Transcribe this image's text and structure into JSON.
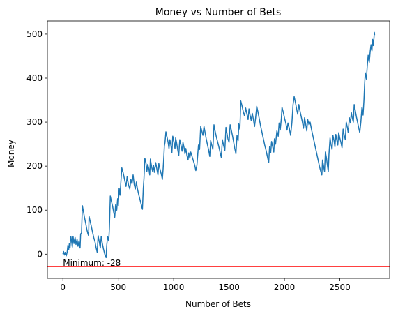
{
  "chart_data": {
    "type": "line",
    "title": "Money vs Number of Bets",
    "xlabel": "Number of Bets",
    "ylabel": "Money",
    "xlim": [
      -140,
      2950
    ],
    "ylim": [
      -55,
      530
    ],
    "xticks": [
      0,
      500,
      1000,
      1500,
      2000,
      2500
    ],
    "yticks": [
      0,
      100,
      200,
      300,
      400,
      500
    ],
    "grid": false,
    "legend": "none",
    "series": [
      {
        "name": "Money",
        "color": "#1f77b4",
        "points": [
          [
            0,
            0
          ],
          [
            6,
            6
          ],
          [
            14,
            -2
          ],
          [
            20,
            4
          ],
          [
            30,
            -4
          ],
          [
            38,
            4
          ],
          [
            45,
            20
          ],
          [
            52,
            10
          ],
          [
            58,
            24
          ],
          [
            64,
            14
          ],
          [
            72,
            40
          ],
          [
            78,
            30
          ],
          [
            85,
            16
          ],
          [
            92,
            40
          ],
          [
            100,
            24
          ],
          [
            110,
            38
          ],
          [
            118,
            22
          ],
          [
            128,
            34
          ],
          [
            136,
            18
          ],
          [
            145,
            30
          ],
          [
            155,
            14
          ],
          [
            160,
            46
          ],
          [
            168,
            48
          ],
          [
            176,
            110
          ],
          [
            186,
            96
          ],
          [
            196,
            82
          ],
          [
            206,
            70
          ],
          [
            216,
            56
          ],
          [
            226,
            46
          ],
          [
            232,
            42
          ],
          [
            236,
            86
          ],
          [
            245,
            76
          ],
          [
            256,
            64
          ],
          [
            266,
            52
          ],
          [
            278,
            38
          ],
          [
            290,
            28
          ],
          [
            300,
            14
          ],
          [
            310,
            4
          ],
          [
            318,
            42
          ],
          [
            328,
            28
          ],
          [
            338,
            14
          ],
          [
            346,
            40
          ],
          [
            355,
            26
          ],
          [
            366,
            12
          ],
          [
            378,
            0
          ],
          [
            390,
            -8
          ],
          [
            396,
            20
          ],
          [
            404,
            40
          ],
          [
            414,
            30
          ],
          [
            420,
            60
          ],
          [
            428,
            132
          ],
          [
            438,
            120
          ],
          [
            448,
            110
          ],
          [
            458,
            96
          ],
          [
            468,
            84
          ],
          [
            476,
            112
          ],
          [
            486,
            100
          ],
          [
            494,
            126
          ],
          [
            500,
            110
          ],
          [
            508,
            150
          ],
          [
            516,
            134
          ],
          [
            524,
            166
          ],
          [
            532,
            196
          ],
          [
            545,
            184
          ],
          [
            558,
            168
          ],
          [
            570,
            154
          ],
          [
            580,
            176
          ],
          [
            592,
            158
          ],
          [
            604,
            148
          ],
          [
            614,
            170
          ],
          [
            624,
            160
          ],
          [
            634,
            180
          ],
          [
            644,
            158
          ],
          [
            654,
            148
          ],
          [
            664,
            164
          ],
          [
            672,
            150
          ],
          [
            684,
            136
          ],
          [
            696,
            124
          ],
          [
            708,
            112
          ],
          [
            718,
            102
          ],
          [
            726,
            150
          ],
          [
            732,
            172
          ],
          [
            740,
            218
          ],
          [
            750,
            208
          ],
          [
            758,
            188
          ],
          [
            766,
            204
          ],
          [
            776,
            194
          ],
          [
            784,
            180
          ],
          [
            790,
            216
          ],
          [
            800,
            200
          ],
          [
            810,
            188
          ],
          [
            818,
            202
          ],
          [
            826,
            186
          ],
          [
            838,
            208
          ],
          [
            848,
            194
          ],
          [
            858,
            180
          ],
          [
            866,
            206
          ],
          [
            876,
            194
          ],
          [
            888,
            182
          ],
          [
            898,
            170
          ],
          [
            905,
            194
          ],
          [
            912,
            224
          ],
          [
            916,
            246
          ],
          [
            922,
            254
          ],
          [
            930,
            278
          ],
          [
            942,
            264
          ],
          [
            950,
            254
          ],
          [
            958,
            240
          ],
          [
            966,
            260
          ],
          [
            976,
            246
          ],
          [
            984,
            230
          ],
          [
            992,
            268
          ],
          [
            1002,
            256
          ],
          [
            1012,
            240
          ],
          [
            1018,
            264
          ],
          [
            1026,
            254
          ],
          [
            1036,
            238
          ],
          [
            1046,
            224
          ],
          [
            1055,
            260
          ],
          [
            1066,
            248
          ],
          [
            1076,
            234
          ],
          [
            1084,
            254
          ],
          [
            1094,
            242
          ],
          [
            1102,
            228
          ],
          [
            1110,
            240
          ],
          [
            1120,
            224
          ],
          [
            1130,
            214
          ],
          [
            1136,
            230
          ],
          [
            1146,
            218
          ],
          [
            1154,
            232
          ],
          [
            1166,
            222
          ],
          [
            1178,
            212
          ],
          [
            1190,
            202
          ],
          [
            1200,
            190
          ],
          [
            1210,
            202
          ],
          [
            1216,
            222
          ],
          [
            1224,
            248
          ],
          [
            1234,
            238
          ],
          [
            1244,
            290
          ],
          [
            1254,
            280
          ],
          [
            1264,
            270
          ],
          [
            1274,
            290
          ],
          [
            1284,
            276
          ],
          [
            1294,
            262
          ],
          [
            1304,
            250
          ],
          [
            1316,
            236
          ],
          [
            1326,
            222
          ],
          [
            1334,
            258
          ],
          [
            1344,
            248
          ],
          [
            1354,
            238
          ],
          [
            1364,
            294
          ],
          [
            1374,
            280
          ],
          [
            1384,
            268
          ],
          [
            1396,
            256
          ],
          [
            1408,
            244
          ],
          [
            1420,
            230
          ],
          [
            1430,
            220
          ],
          [
            1440,
            260
          ],
          [
            1450,
            248
          ],
          [
            1462,
            236
          ],
          [
            1472,
            288
          ],
          [
            1480,
            276
          ],
          [
            1490,
            262
          ],
          [
            1500,
            254
          ],
          [
            1510,
            294
          ],
          [
            1522,
            280
          ],
          [
            1532,
            268
          ],
          [
            1542,
            254
          ],
          [
            1552,
            240
          ],
          [
            1562,
            228
          ],
          [
            1572,
            270
          ],
          [
            1582,
            258
          ],
          [
            1588,
            296
          ],
          [
            1598,
            284
          ],
          [
            1606,
            348
          ],
          [
            1618,
            336
          ],
          [
            1630,
            322
          ],
          [
            1640,
            314
          ],
          [
            1650,
            332
          ],
          [
            1660,
            320
          ],
          [
            1672,
            306
          ],
          [
            1680,
            330
          ],
          [
            1690,
            316
          ],
          [
            1700,
            304
          ],
          [
            1710,
            320
          ],
          [
            1720,
            306
          ],
          [
            1730,
            290
          ],
          [
            1740,
            310
          ],
          [
            1750,
            336
          ],
          [
            1762,
            322
          ],
          [
            1774,
            306
          ],
          [
            1786,
            290
          ],
          [
            1798,
            276
          ],
          [
            1810,
            262
          ],
          [
            1822,
            248
          ],
          [
            1834,
            236
          ],
          [
            1846,
            222
          ],
          [
            1858,
            208
          ],
          [
            1866,
            244
          ],
          [
            1876,
            230
          ],
          [
            1884,
            256
          ],
          [
            1894,
            244
          ],
          [
            1904,
            232
          ],
          [
            1910,
            262
          ],
          [
            1920,
            250
          ],
          [
            1932,
            280
          ],
          [
            1944,
            268
          ],
          [
            1952,
            298
          ],
          [
            1962,
            282
          ],
          [
            1972,
            308
          ],
          [
            1978,
            334
          ],
          [
            1990,
            322
          ],
          [
            2002,
            308
          ],
          [
            2014,
            296
          ],
          [
            2024,
            282
          ],
          [
            2032,
            298
          ],
          [
            2044,
            286
          ],
          [
            2056,
            270
          ],
          [
            2068,
            300
          ],
          [
            2078,
            340
          ],
          [
            2088,
            358
          ],
          [
            2100,
            344
          ],
          [
            2110,
            330
          ],
          [
            2120,
            318
          ],
          [
            2130,
            340
          ],
          [
            2140,
            326
          ],
          [
            2152,
            312
          ],
          [
            2162,
            300
          ],
          [
            2172,
            286
          ],
          [
            2182,
            310
          ],
          [
            2192,
            296
          ],
          [
            2202,
            280
          ],
          [
            2210,
            306
          ],
          [
            2222,
            294
          ],
          [
            2232,
            300
          ],
          [
            2244,
            284
          ],
          [
            2256,
            270
          ],
          [
            2268,
            256
          ],
          [
            2280,
            242
          ],
          [
            2292,
            228
          ],
          [
            2304,
            214
          ],
          [
            2316,
            200
          ],
          [
            2328,
            188
          ],
          [
            2338,
            180
          ],
          [
            2344,
            214
          ],
          [
            2352,
            202
          ],
          [
            2362,
            188
          ],
          [
            2370,
            232
          ],
          [
            2380,
            218
          ],
          [
            2388,
            202
          ],
          [
            2396,
            188
          ],
          [
            2402,
            226
          ],
          [
            2412,
            264
          ],
          [
            2420,
            250
          ],
          [
            2430,
            238
          ],
          [
            2438,
            270
          ],
          [
            2448,
            258
          ],
          [
            2456,
            244
          ],
          [
            2464,
            272
          ],
          [
            2474,
            258
          ],
          [
            2482,
            248
          ],
          [
            2490,
            276
          ],
          [
            2500,
            264
          ],
          [
            2510,
            254
          ],
          [
            2520,
            242
          ],
          [
            2530,
            284
          ],
          [
            2540,
            270
          ],
          [
            2550,
            260
          ],
          [
            2558,
            300
          ],
          [
            2568,
            288
          ],
          [
            2576,
            276
          ],
          [
            2586,
            310
          ],
          [
            2596,
            298
          ],
          [
            2604,
            322
          ],
          [
            2612,
            310
          ],
          [
            2622,
            300
          ],
          [
            2630,
            340
          ],
          [
            2640,
            326
          ],
          [
            2650,
            312
          ],
          [
            2660,
            300
          ],
          [
            2670,
            288
          ],
          [
            2680,
            276
          ],
          [
            2690,
            300
          ],
          [
            2700,
            334
          ],
          [
            2710,
            316
          ],
          [
            2718,
            350
          ],
          [
            2724,
            386
          ],
          [
            2730,
            412
          ],
          [
            2740,
            398
          ],
          [
            2748,
            428
          ],
          [
            2756,
            452
          ],
          [
            2766,
            436
          ],
          [
            2774,
            460
          ],
          [
            2782,
            476
          ],
          [
            2790,
            462
          ],
          [
            2796,
            488
          ],
          [
            2802,
            474
          ],
          [
            2808,
            490
          ],
          [
            2812,
            504
          ],
          [
            2814,
            498
          ]
        ]
      }
    ],
    "reference_line": {
      "type": "horizontal",
      "y": -28,
      "color": "#ff0000"
    },
    "annotation": {
      "text": "Minimum: -28",
      "x": 0,
      "y": -28
    }
  }
}
